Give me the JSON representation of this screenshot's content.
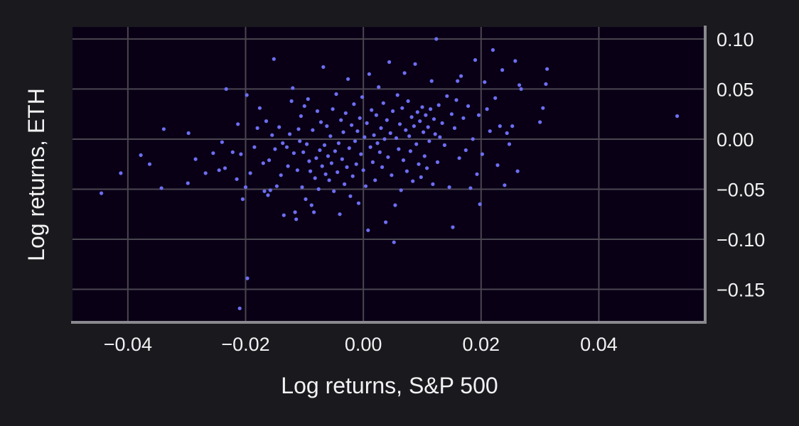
{
  "chart_data": {
    "type": "scatter",
    "xlabel": "Log returns, S&P 500",
    "ylabel": "Log returns, ETH",
    "xlim": [
      -0.0494,
      0.0583
    ],
    "ylim": [
      -0.183,
      0.112
    ],
    "x_ticks": [
      -0.04,
      -0.02,
      0.0,
      0.02,
      0.04
    ],
    "x_tick_labels": [
      "−0.04",
      "−0.02",
      "0.00",
      "0.02",
      "0.04"
    ],
    "y_ticks": [
      0.1,
      0.05,
      0.0,
      -0.05,
      -0.1,
      -0.15
    ],
    "y_tick_labels": [
      "0.10",
      "0.05",
      "0.00",
      "−0.05",
      "−0.10",
      "−0.15"
    ],
    "y_axis_side": "right",
    "grid": true,
    "legend": "none",
    "colors": {
      "background": "#1a191e",
      "plot_background": "#090016",
      "grid": "#4a4650",
      "axis_spine": "#8a8a8e",
      "point": "#6e6ef2",
      "text": "#f2f2f2"
    },
    "points": [
      [
        -0.0445,
        -0.054
      ],
      [
        -0.0412,
        -0.034
      ],
      [
        -0.0378,
        -0.016
      ],
      [
        -0.0363,
        -0.025
      ],
      [
        -0.0343,
        -0.049
      ],
      [
        -0.0339,
        0.01
      ],
      [
        -0.0297,
        0.006
      ],
      [
        -0.0298,
        -0.044
      ],
      [
        -0.0285,
        -0.02
      ],
      [
        -0.0268,
        -0.034
      ],
      [
        -0.0255,
        -0.014
      ],
      [
        -0.0245,
        -0.031
      ],
      [
        -0.024,
        -0.003
      ],
      [
        -0.0235,
        -0.029
      ],
      [
        -0.0233,
        0.05
      ],
      [
        -0.0222,
        -0.013
      ],
      [
        -0.0215,
        -0.04
      ],
      [
        -0.0213,
        0.015
      ],
      [
        -0.0208,
        -0.015
      ],
      [
        -0.0205,
        -0.06
      ],
      [
        -0.02,
        -0.048
      ],
      [
        -0.0197,
        -0.139
      ],
      [
        -0.0192,
        -0.034
      ],
      [
        -0.0198,
        0.044
      ],
      [
        -0.021,
        -0.169
      ],
      [
        -0.0185,
        -0.008
      ],
      [
        -0.018,
        0.011
      ],
      [
        -0.0176,
        0.031
      ],
      [
        -0.017,
        -0.024
      ],
      [
        -0.0168,
        -0.052
      ],
      [
        -0.0165,
        0.018
      ],
      [
        -0.0162,
        -0.056
      ],
      [
        -0.016,
        -0.021
      ],
      [
        -0.0158,
        -0.051
      ],
      [
        -0.0155,
        0.004
      ],
      [
        -0.0152,
        0.08
      ],
      [
        -0.015,
        -0.01
      ],
      [
        -0.0147,
        -0.047
      ],
      [
        -0.0143,
        0.012
      ],
      [
        -0.014,
        -0.036
      ],
      [
        -0.0137,
        -0.004
      ],
      [
        -0.0135,
        -0.076
      ],
      [
        -0.013,
        -0.008
      ],
      [
        -0.0128,
        -0.027
      ],
      [
        -0.0125,
        0.005
      ],
      [
        -0.0122,
        0.038
      ],
      [
        -0.012,
        0.051
      ],
      [
        -0.0118,
        -0.014
      ],
      [
        -0.0116,
        -0.073
      ],
      [
        -0.0114,
        -0.08
      ],
      [
        -0.0112,
        -0.031
      ],
      [
        -0.011,
        0.01
      ],
      [
        -0.0108,
        -0.002
      ],
      [
        -0.0106,
        0.023
      ],
      [
        -0.0104,
        -0.048
      ],
      [
        -0.0102,
        -0.013
      ],
      [
        -0.01,
        0.033
      ],
      [
        -0.0098,
        -0.06
      ],
      [
        -0.0096,
        -0.005
      ],
      [
        -0.0094,
        0.04
      ],
      [
        -0.0092,
        -0.022
      ],
      [
        -0.009,
        -0.032
      ],
      [
        -0.0088,
        -0.066
      ],
      [
        -0.0086,
        0.009
      ],
      [
        -0.0084,
        -0.073
      ],
      [
        -0.0082,
        -0.039
      ],
      [
        -0.008,
        -0.019
      ],
      [
        -0.0078,
        0.028
      ],
      [
        -0.0076,
        -0.05
      ],
      [
        -0.0074,
        -0.011
      ],
      [
        -0.0072,
        0.017
      ],
      [
        -0.007,
        -0.027
      ],
      [
        -0.0068,
        0.072
      ],
      [
        -0.0066,
        -0.006
      ],
      [
        -0.0064,
        -0.035
      ],
      [
        -0.0062,
        0.013
      ],
      [
        -0.006,
        -0.017
      ],
      [
        -0.0058,
        -0.041
      ],
      [
        -0.0056,
        0.003
      ],
      [
        -0.0054,
        -0.024
      ],
      [
        -0.0052,
        0.03
      ],
      [
        -0.005,
        -0.052
      ],
      [
        -0.0048,
        -0.012
      ],
      [
        -0.0046,
        0.045
      ],
      [
        -0.0044,
        -0.033
      ],
      [
        -0.0042,
        -0.004
      ],
      [
        -0.004,
        -0.075
      ],
      [
        -0.0038,
        0.019
      ],
      [
        -0.0036,
        -0.02
      ],
      [
        -0.0034,
        0.007
      ],
      [
        -0.0032,
        -0.045
      ],
      [
        -0.003,
        0.026
      ],
      [
        -0.0028,
        -0.028
      ],
      [
        -0.0026,
        0.06
      ],
      [
        -0.0024,
        -0.009
      ],
      [
        -0.0022,
        -0.057
      ],
      [
        -0.002,
        0.014
      ],
      [
        -0.0018,
        -0.037
      ],
      [
        -0.0016,
        0.035
      ],
      [
        -0.0014,
        -0.002
      ],
      [
        -0.0012,
        -0.025
      ],
      [
        -0.001,
        0.008
      ],
      [
        -0.0008,
        -0.064
      ],
      [
        -0.0006,
        0.021
      ],
      [
        -0.0004,
        -0.015
      ],
      [
        -0.0002,
        0.042
      ],
      [
        0.0,
        -0.031
      ],
      [
        0.0002,
        0.002
      ],
      [
        0.0004,
        -0.047
      ],
      [
        0.0006,
        0.016
      ],
      [
        0.0008,
        -0.091
      ],
      [
        0.001,
        0.065
      ],
      [
        0.0012,
        -0.008
      ],
      [
        0.0014,
        0.029
      ],
      [
        0.0016,
        -0.023
      ],
      [
        0.0018,
        0.004
      ],
      [
        0.002,
        -0.041
      ],
      [
        0.0022,
        0.024
      ],
      [
        0.0024,
        -0.004
      ],
      [
        0.0026,
        0.052
      ],
      [
        0.0028,
        -0.013
      ],
      [
        0.003,
        0.011
      ],
      [
        0.0032,
        -0.028
      ],
      [
        0.0034,
        0.036
      ],
      [
        0.0036,
        0.0
      ],
      [
        0.0038,
        -0.083
      ],
      [
        0.004,
        0.019
      ],
      [
        0.0042,
        -0.018
      ],
      [
        0.0044,
        0.077
      ],
      [
        0.0046,
        0.006
      ],
      [
        0.0048,
        -0.036
      ],
      [
        0.005,
        0.028
      ],
      [
        0.0052,
        -0.103
      ],
      [
        0.0054,
        -0.066
      ],
      [
        0.0056,
        0.001
      ],
      [
        0.0058,
        0.044
      ],
      [
        0.006,
        -0.01
      ],
      [
        0.0062,
        0.015
      ],
      [
        0.0064,
        -0.051
      ],
      [
        0.0066,
        0.031
      ],
      [
        0.0068,
        -0.021
      ],
      [
        0.007,
        0.066
      ],
      [
        0.0072,
        0.009
      ],
      [
        0.0074,
        -0.032
      ],
      [
        0.0076,
        0.038
      ],
      [
        0.0078,
        0.003
      ],
      [
        0.008,
        -0.012
      ],
      [
        0.0082,
        0.022
      ],
      [
        0.0084,
        -0.042
      ],
      [
        0.0086,
        0.013
      ],
      [
        0.0088,
        0.075
      ],
      [
        0.009,
        -0.005
      ],
      [
        0.0092,
        0.027
      ],
      [
        0.0094,
        -0.025
      ],
      [
        0.0096,
        0.018
      ],
      [
        0.0098,
        -0.038
      ],
      [
        0.01,
        0.032
      ],
      [
        0.0102,
        0.007
      ],
      [
        0.0104,
        -0.017
      ],
      [
        0.0106,
        0.024
      ],
      [
        0.0108,
        -0.029
      ],
      [
        0.011,
        0.012
      ],
      [
        0.0112,
        -0.002
      ],
      [
        0.0114,
        0.03
      ],
      [
        0.0116,
        0.058
      ],
      [
        0.0118,
        -0.045
      ],
      [
        0.012,
        0.02
      ],
      [
        0.0122,
        0.005
      ],
      [
        0.0124,
        0.1
      ],
      [
        0.0126,
        -0.023
      ],
      [
        0.0128,
        0.034
      ],
      [
        0.013,
        0.002
      ],
      [
        0.0134,
        0.016
      ],
      [
        0.0138,
        -0.006
      ],
      [
        0.0142,
        0.043
      ],
      [
        0.0146,
        -0.048
      ],
      [
        0.015,
        0.025
      ],
      [
        0.0152,
        -0.088
      ],
      [
        0.0155,
        0.011
      ],
      [
        0.0158,
        0.039
      ],
      [
        0.016,
        0.058
      ],
      [
        0.0163,
        -0.019
      ],
      [
        0.0166,
        0.063
      ],
      [
        0.017,
        0.021
      ],
      [
        0.0174,
        -0.011
      ],
      [
        0.0178,
        0.033
      ],
      [
        0.0182,
        -0.049
      ],
      [
        0.0186,
        0.0
      ],
      [
        0.019,
        0.079
      ],
      [
        0.0193,
        -0.035
      ],
      [
        0.0196,
        0.024
      ],
      [
        0.0198,
        -0.065
      ],
      [
        0.0202,
        -0.015
      ],
      [
        0.0206,
        0.057
      ],
      [
        0.021,
        0.03
      ],
      [
        0.0215,
        0.008
      ],
      [
        0.022,
        0.089
      ],
      [
        0.0224,
        0.041
      ],
      [
        0.0228,
        -0.026
      ],
      [
        0.0232,
        0.013
      ],
      [
        0.0236,
        0.069
      ],
      [
        0.024,
        -0.046
      ],
      [
        0.0244,
        0.006
      ],
      [
        0.0248,
        -0.005
      ],
      [
        0.0253,
        0.013
      ],
      [
        0.0258,
        0.078
      ],
      [
        0.0262,
        -0.032
      ],
      [
        0.0265,
        0.054
      ],
      [
        0.0268,
        0.05
      ],
      [
        0.03,
        0.017
      ],
      [
        0.0305,
        0.031
      ],
      [
        0.031,
        0.055
      ],
      [
        0.0312,
        0.07
      ],
      [
        0.0533,
        0.023
      ]
    ]
  }
}
